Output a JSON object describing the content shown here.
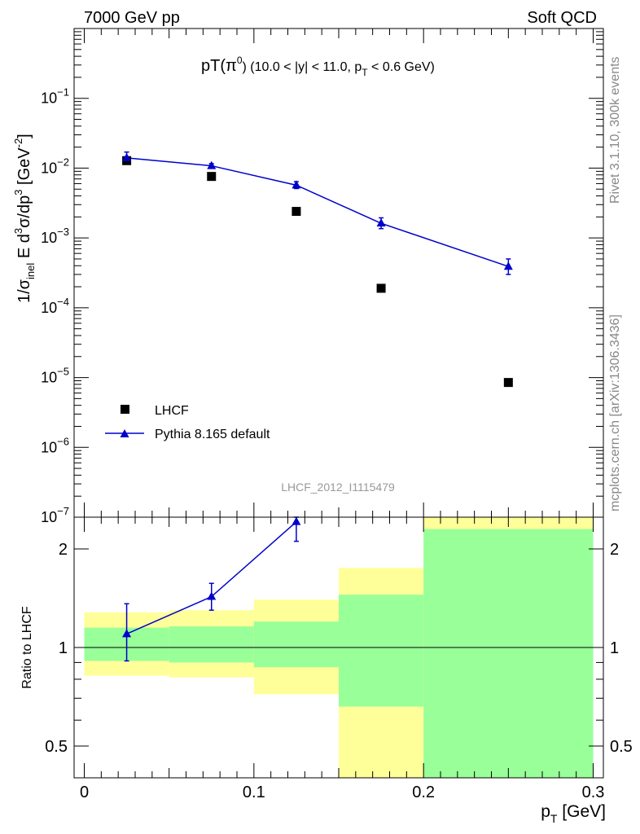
{
  "header": {
    "left": "7000 GeV pp",
    "right": "Soft QCD"
  },
  "side_labels": {
    "rivet": "Rivet 3.1.10,  300k events",
    "mcplots": "mcplots.cern.ch [arXiv:1306.3436]"
  },
  "chart_data": [
    {
      "type": "scatter",
      "title_main": "pT(π",
      "title_sup": "0",
      "title_rest": ") (10.0 < |y| < 11.0, p",
      "title_sub": "T",
      "title_end": " < 0.6 GeV)",
      "ylabel": "1/σinel E d3σ/dp3 [GeV-2]",
      "yscale": "log",
      "ylim": [
        1e-07,
        1
      ],
      "xlim": [
        -0.006,
        0.306
      ],
      "watermark": "LHCF_2012_I1115479",
      "ytick_labels": [
        "10−7",
        "10−6",
        "10−5",
        "10−4",
        "10−3",
        "10−2",
        "10−1"
      ],
      "series": [
        {
          "name": "LHCF",
          "marker": "square",
          "color": "#000000",
          "x": [
            0.025,
            0.075,
            0.125,
            0.175,
            0.25
          ],
          "y": [
            0.0128,
            0.0076,
            0.0024,
            0.00019,
            8.5e-06
          ]
        },
        {
          "name": "Pythia 8.165 default",
          "marker": "triangle",
          "color": "#0000cc",
          "x": [
            0.025,
            0.075,
            0.125,
            0.175,
            0.25
          ],
          "y": [
            0.014,
            0.0108,
            0.0057,
            0.00162,
            0.00039
          ],
          "yerr_low": [
            0.0021,
            0.0008,
            0.0006,
            0.00026,
            9e-05
          ],
          "yerr_high": [
            0.003,
            0.0008,
            0.0007,
            0.00032,
            0.00011
          ]
        }
      ]
    },
    {
      "type": "scatter",
      "ylabel": "Ratio to LHCF",
      "xlabel": "p",
      "xlabel_sub": "T",
      "xlabel_unit": " [GeV]",
      "yscale": "log",
      "ylim": [
        0.4,
        2.5
      ],
      "xlim": [
        -0.006,
        0.306
      ],
      "xticks": [
        0,
        0.1,
        0.2,
        0.3
      ],
      "xtick_labels": [
        "0",
        "0.1",
        "0.2",
        "0.3"
      ],
      "yticks": [
        0.5,
        1,
        2
      ],
      "ytick_labels": [
        "0.5",
        "1",
        "2"
      ],
      "bands": [
        {
          "x0": 0.0,
          "x1": 0.05,
          "yellow": [
            0.82,
            1.28
          ],
          "green": [
            0.91,
            1.15
          ]
        },
        {
          "x0": 0.05,
          "x1": 0.1,
          "yellow": [
            0.81,
            1.3
          ],
          "green": [
            0.9,
            1.16
          ]
        },
        {
          "x0": 0.1,
          "x1": 0.15,
          "yellow": [
            0.72,
            1.4
          ],
          "green": [
            0.87,
            1.2
          ]
        },
        {
          "x0": 0.15,
          "x1": 0.2,
          "yellow": [
            0.3,
            1.75
          ],
          "green": [
            0.66,
            1.45
          ]
        },
        {
          "x0": 0.2,
          "x1": 0.3,
          "yellow": [
            0.3,
            2.5
          ],
          "green": [
            0.3,
            2.3
          ]
        }
      ],
      "series": [
        {
          "name": "Pythia 8.165 default",
          "color": "#0000cc",
          "x": [
            0.025,
            0.075,
            0.125
          ],
          "y": [
            1.1,
            1.43,
            2.42
          ],
          "yerr_low": [
            0.19,
            0.13,
            0.31
          ],
          "yerr_high": [
            0.26,
            0.14,
            0.35
          ]
        }
      ]
    }
  ]
}
